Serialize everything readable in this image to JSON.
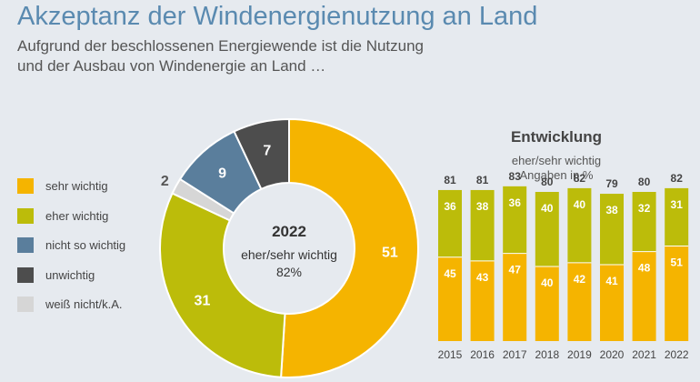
{
  "header": {
    "title": "Akzeptanz der Windenergienutzung an Land",
    "subtitle_line1": "Aufgrund der beschlossenen Energiewende ist die Nutzung",
    "subtitle_line2": "und der Ausbau von Windenergie an Land …"
  },
  "legend": [
    {
      "label": "sehr wichtig",
      "color": "#f5b400"
    },
    {
      "label": "eher wichtig",
      "color": "#bcbc0a"
    },
    {
      "label": "nicht so wichtig",
      "color": "#5a7e9c"
    },
    {
      "label": "unwichtig",
      "color": "#4d4d4d"
    },
    {
      "label": "weiß nicht/k.A.",
      "color": "#d6d6d6"
    }
  ],
  "development": {
    "title": "Entwicklung",
    "sub1": "eher/sehr wichtig",
    "sub2": "Angaben in %"
  },
  "chart_data": [
    {
      "type": "pie",
      "variant": "donut",
      "center_year": "2022",
      "center_label": "eher/sehr wichtig",
      "center_value": "82%",
      "slices": [
        {
          "label": "sehr wichtig",
          "value": 51,
          "color": "#f5b400"
        },
        {
          "label": "eher wichtig",
          "value": 31,
          "color": "#bcbc0a"
        },
        {
          "label": "weiß nicht/k.A.",
          "value": 2,
          "color": "#d6d6d6"
        },
        {
          "label": "nicht so wichtig",
          "value": 9,
          "color": "#5a7e9c"
        },
        {
          "label": "unwichtig",
          "value": 7,
          "color": "#4d4d4d"
        }
      ]
    },
    {
      "type": "bar",
      "stacked": true,
      "title": "Entwicklung",
      "categories": [
        "2015",
        "2016",
        "2017",
        "2018",
        "2019",
        "2020",
        "2021",
        "2022"
      ],
      "series": [
        {
          "name": "sehr wichtig",
          "color": "#f5b400",
          "values": [
            45,
            43,
            47,
            40,
            42,
            41,
            48,
            51
          ]
        },
        {
          "name": "eher wichtig",
          "color": "#bcbc0a",
          "values": [
            36,
            38,
            36,
            40,
            40,
            38,
            32,
            31
          ]
        }
      ],
      "totals": [
        81,
        81,
        83,
        80,
        82,
        79,
        80,
        82
      ],
      "ylim": [
        0,
        90
      ]
    }
  ]
}
